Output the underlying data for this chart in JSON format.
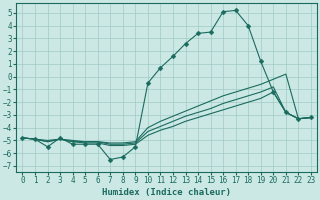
{
  "xlabel": "Humidex (Indice chaleur)",
  "bg_color": "#cce8e5",
  "grid_color": "#a0cac6",
  "line_color": "#1a6b5e",
  "xlim": [
    -0.5,
    23.5
  ],
  "ylim": [
    -7.5,
    5.8
  ],
  "yticks": [
    -7,
    -6,
    -5,
    -4,
    -3,
    -2,
    -1,
    0,
    1,
    2,
    3,
    4,
    5
  ],
  "xticks": [
    0,
    1,
    2,
    3,
    4,
    5,
    6,
    7,
    8,
    9,
    10,
    11,
    12,
    13,
    14,
    15,
    16,
    17,
    18,
    19,
    20,
    21,
    22,
    23
  ],
  "main_y": [
    -4.8,
    -4.9,
    -5.5,
    -4.8,
    -5.3,
    -5.3,
    -5.3,
    -6.5,
    -6.3,
    -5.5,
    -0.5,
    0.7,
    1.6,
    2.6,
    3.4,
    3.5,
    5.1,
    5.2,
    4.0,
    1.2,
    -1.2,
    -2.8,
    -3.3,
    -3.2
  ],
  "line2_y": [
    -4.8,
    -4.9,
    -5.0,
    -4.9,
    -5.0,
    -5.1,
    -5.1,
    -5.2,
    -5.2,
    -5.1,
    -4.0,
    -3.5,
    -3.1,
    -2.7,
    -2.3,
    -1.9,
    -1.5,
    -1.2,
    -0.9,
    -0.6,
    -0.2,
    0.2,
    -3.3,
    -3.2
  ],
  "line3_y": [
    -4.8,
    -4.9,
    -5.1,
    -4.9,
    -5.1,
    -5.1,
    -5.1,
    -5.3,
    -5.3,
    -5.2,
    -4.3,
    -3.9,
    -3.5,
    -3.1,
    -2.8,
    -2.5,
    -2.1,
    -1.8,
    -1.5,
    -1.2,
    -0.8,
    -2.8,
    -3.3,
    -3.2
  ],
  "line4_y": [
    -4.8,
    -4.9,
    -5.1,
    -4.9,
    -5.1,
    -5.2,
    -5.2,
    -5.4,
    -5.4,
    -5.3,
    -4.6,
    -4.2,
    -3.9,
    -3.5,
    -3.2,
    -2.9,
    -2.6,
    -2.3,
    -2.0,
    -1.7,
    -1.2,
    -2.8,
    -3.3,
    -3.2
  ],
  "tick_fontsize": 5.5,
  "xlabel_fontsize": 6.5,
  "linewidth": 0.8,
  "markersize": 2.5
}
